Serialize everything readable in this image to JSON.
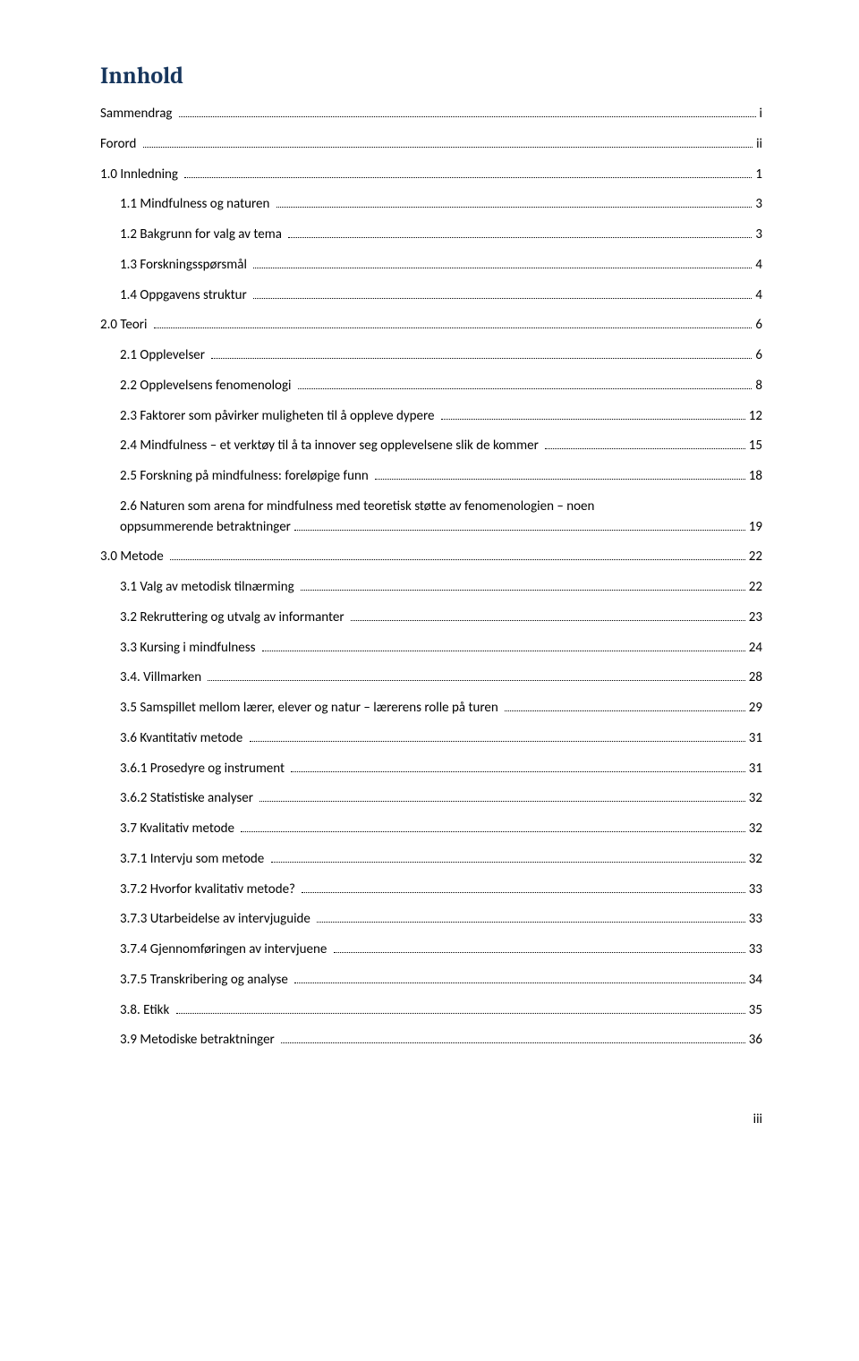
{
  "heading": "Innhold",
  "page_number_footer": "iii",
  "colors": {
    "heading_color": "#17365d",
    "text_color": "#000000",
    "background": "#ffffff"
  },
  "font": {
    "heading_family": "Cambria",
    "body_family": "Calibri",
    "heading_size_pt": 20,
    "body_size_pt": 11
  },
  "toc": [
    {
      "level": 1,
      "label": "Sammendrag",
      "page": "i"
    },
    {
      "level": 1,
      "label": "Forord",
      "page": "ii"
    },
    {
      "level": 1,
      "label": "1.0 Innledning",
      "page": "1"
    },
    {
      "level": 2,
      "label": "1.1 Mindfulness og naturen",
      "page": "3"
    },
    {
      "level": 2,
      "label": "1.2 Bakgrunn for valg av tema",
      "page": "3"
    },
    {
      "level": 2,
      "label": "1.3 Forskningsspørsmål",
      "page": "4"
    },
    {
      "level": 2,
      "label": "1.4 Oppgavens struktur",
      "page": "4"
    },
    {
      "level": 1,
      "label": "2.0 Teori",
      "page": "6"
    },
    {
      "level": 2,
      "label": "2.1 Opplevelser",
      "page": "6"
    },
    {
      "level": 2,
      "label": "2.2 Opplevelsens fenomenologi",
      "page": "8"
    },
    {
      "level": 2,
      "label": "2.3 Faktorer som påvirker muligheten til å oppleve dypere",
      "page": "12"
    },
    {
      "level": 2,
      "label": "2.4 Mindfulness – et verktøy til å ta innover seg opplevelsene slik de kommer",
      "page": "15"
    },
    {
      "level": 2,
      "label": "2.5 Forskning på mindfulness: foreløpige funn",
      "page": "18"
    },
    {
      "level": 2,
      "label_line1": "2.6 Naturen som arena for mindfulness med teoretisk støtte av fenomenologien – noen",
      "label_line2": "oppsummerende betraktninger",
      "page": "19",
      "multiline": true
    },
    {
      "level": 1,
      "label": "3.0 Metode",
      "page": "22"
    },
    {
      "level": 2,
      "label": "3.1 Valg av metodisk tilnærming",
      "page": "22"
    },
    {
      "level": 2,
      "label": "3.2 Rekruttering og utvalg av informanter",
      "page": "23"
    },
    {
      "level": 2,
      "label": "3.3 Kursing i mindfulness",
      "page": "24"
    },
    {
      "level": 2,
      "label": "3.4. Villmarken",
      "page": "28"
    },
    {
      "level": 2,
      "label": "3.5 Samspillet mellom lærer, elever og natur – lærerens rolle på turen",
      "page": "29"
    },
    {
      "level": 2,
      "label": "3.6 Kvantitativ metode",
      "page": "31"
    },
    {
      "level": 2,
      "label": "3.6.1 Prosedyre og instrument",
      "page": "31"
    },
    {
      "level": 2,
      "label": "3.6.2 Statistiske analyser",
      "page": "32"
    },
    {
      "level": 2,
      "label": "3.7 Kvalitativ metode",
      "page": "32"
    },
    {
      "level": 2,
      "label": "3.7.1 Intervju som metode",
      "page": "32"
    },
    {
      "level": 2,
      "label": "3.7.2 Hvorfor kvalitativ metode?",
      "page": "33"
    },
    {
      "level": 2,
      "label": "3.7.3 Utarbeidelse av intervjuguide",
      "page": "33"
    },
    {
      "level": 2,
      "label": "3.7.4 Gjennomføringen av intervjuene",
      "page": "33"
    },
    {
      "level": 2,
      "label": "3.7.5 Transkribering og analyse",
      "page": "34"
    },
    {
      "level": 2,
      "label": "3.8. Etikk",
      "page": "35"
    },
    {
      "level": 2,
      "label": "3.9 Metodiske betraktninger",
      "page": "36"
    }
  ]
}
